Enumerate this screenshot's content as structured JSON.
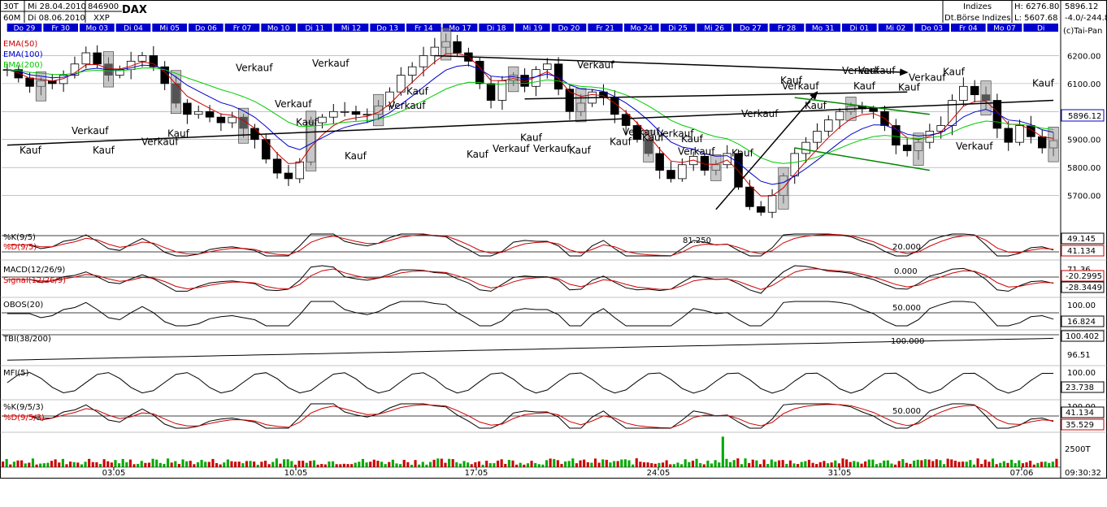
{
  "header": {
    "period_a": "30T",
    "period_b": "60M",
    "date_from": "Mi 28.04.2010",
    "date_to": "Di 08.06.2010",
    "wkn": "846900",
    "exchange": "XXP",
    "symbol": "DAX",
    "category": "Indizes",
    "category_sub": "Dt.Börse Indizes",
    "high": "H: 6276.80",
    "low": "L: 5607.68",
    "last": "5896.12",
    "change": "-4.0/-244.8",
    "copyright": "(c)Tai-Pan"
  },
  "day_labels": [
    "Do 29",
    "Fr 30",
    "Mo 03",
    "Di 04",
    "Mi 05",
    "Do 06",
    "Fr 07",
    "Mo 10",
    "Di 11",
    "Mi 12",
    "Do 13",
    "Fr 14",
    "Mo 17",
    "Di 18",
    "Mi 19",
    "Do 20",
    "Fr 21",
    "Mo 24",
    "Di 25",
    "Mi 26",
    "Do 27",
    "Fr 28",
    "Mo 31",
    "Di 01",
    "Mi 02",
    "Do 03",
    "Fr 04",
    "Mo 07",
    "Di"
  ],
  "date_axis": [
    "03.05",
    "10.05",
    "17.05",
    "24.05",
    "31.05",
    "07.06"
  ],
  "colors": {
    "ema50": "#cc0000",
    "ema100": "#0000cc",
    "ema200": "#00cc00",
    "signal": "#cc0000",
    "trend_green": "#008800",
    "axis_blue": "#0000cc",
    "label_red": "#cc0000",
    "volume_up": "#00aa00",
    "volume_down": "#cc0000"
  },
  "chart_data": {
    "type": "candlestick",
    "title": "DAX",
    "ylim": [
      5600,
      6276.8
    ],
    "y_ticks": [
      5700,
      5800,
      5900,
      6000,
      6100,
      6200
    ],
    "last_value": 5896.12,
    "close_series": [
      6150,
      6120,
      6090,
      6110,
      6100,
      6130,
      6170,
      6210,
      6170,
      6130,
      6150,
      6180,
      6200,
      6160,
      6100,
      6030,
      5990,
      6000,
      5980,
      5960,
      5980,
      5940,
      5900,
      5830,
      5780,
      5760,
      5820,
      5960,
      5980,
      6000,
      6000,
      5990,
      5990,
      6020,
      6070,
      6130,
      6160,
      6200,
      6230,
      6250,
      6210,
      6180,
      6100,
      6040,
      6110,
      6130,
      6090,
      6150,
      6170,
      6080,
      6000,
      6030,
      6070,
      6050,
      5990,
      5950,
      5900,
      5850,
      5790,
      5760,
      5810,
      5840,
      5790,
      5810,
      5850,
      5730,
      5660,
      5640,
      5700,
      5770,
      5850,
      5890,
      5930,
      5970,
      6000,
      6020,
      6010,
      6000,
      5950,
      5880,
      5860,
      5890,
      5930,
      5950,
      6040,
      6090,
      6060,
      6040,
      5940,
      5890,
      5950,
      5910,
      5870,
      5896
    ],
    "indicators": {
      "ema_legend": [
        "EMA(50)",
        "EMA(100)",
        "EMA(200)"
      ],
      "stoch": {
        "k_label": "%K(9/5)",
        "d_label": "%D(9/5)",
        "levels": [
          "81.250",
          "20.000"
        ],
        "k_value": "49.145",
        "d_value": "41.134"
      },
      "macd": {
        "label": "MACD(12/26/9)",
        "signal_label": "Signal(12/26/9)",
        "level": "0.000",
        "value": "-28.3449",
        "signal_value": "-20.2995",
        "top": "71.36"
      },
      "obos": {
        "label": "OBOS(20)",
        "level": "50.000",
        "top": "100.00",
        "value": "16.824"
      },
      "tbi": {
        "label": "TBI(38/200)",
        "level": "100.000",
        "value": "100.402",
        "low": "96.51"
      },
      "mfi": {
        "label": "MFI(5)",
        "top": "100.00",
        "value": "23.738"
      },
      "stoch2": {
        "k_label": "%K(9/5/3)",
        "d_label": "%D(9/5/3)",
        "level": "50.000",
        "top": "100.00",
        "k_value": "41.134",
        "d_value": "35.529"
      },
      "volume": {
        "tick": "2500T",
        "time": "09:30:32"
      }
    },
    "signals": [
      {
        "text": "Kauf",
        "x": 24,
        "y": 5850
      },
      {
        "text": "Kauf",
        "x": 114,
        "y": 5850
      },
      {
        "text": "Kauf",
        "x": 206,
        "y": 5910
      },
      {
        "text": "Kauf",
        "x": 364,
        "y": 5950
      },
      {
        "text": "Kauf",
        "x": 424,
        "y": 5830
      },
      {
        "text": "Kauf",
        "x": 500,
        "y": 6060
      },
      {
        "text": "Kauf",
        "x": 574,
        "y": 5835
      },
      {
        "text": "Kauf",
        "x": 640,
        "y": 5895
      },
      {
        "text": "Kauf",
        "x": 700,
        "y": 5850
      },
      {
        "text": "Kauf",
        "x": 750,
        "y": 5880
      },
      {
        "text": "Kauf",
        "x": 790,
        "y": 5895
      },
      {
        "text": "Kauf",
        "x": 838,
        "y": 5890
      },
      {
        "text": "Kauf",
        "x": 900,
        "y": 5840
      },
      {
        "text": "Kauf",
        "x": 960,
        "y": 6100
      },
      {
        "text": "Kauf",
        "x": 990,
        "y": 6010
      },
      {
        "text": "Kauf",
        "x": 1050,
        "y": 6080
      },
      {
        "text": "Kauf",
        "x": 1105,
        "y": 6075
      },
      {
        "text": "Kauf",
        "x": 1160,
        "y": 6130
      },
      {
        "text": "Kauf",
        "x": 1270,
        "y": 6090
      },
      {
        "text": "Verkauf",
        "x": 88,
        "y": 5920
      },
      {
        "text": "Verkauf",
        "x": 174,
        "y": 5880
      },
      {
        "text": "Verkauf",
        "x": 290,
        "y": 6145
      },
      {
        "text": "Verkauf",
        "x": 338,
        "y": 6015
      },
      {
        "text": "Verkauf",
        "x": 384,
        "y": 6160
      },
      {
        "text": "Verkauf",
        "x": 478,
        "y": 6010
      },
      {
        "text": "Verkauf",
        "x": 606,
        "y": 5855
      },
      {
        "text": "Verkauf",
        "x": 656,
        "y": 5855
      },
      {
        "text": "Verkauf",
        "x": 710,
        "y": 6155
      },
      {
        "text": "Verkauf",
        "x": 766,
        "y": 5915
      },
      {
        "text": "Verkauf",
        "x": 808,
        "y": 5910
      },
      {
        "text": "Verkauf",
        "x": 834,
        "y": 5845
      },
      {
        "text": "Verkauf",
        "x": 912,
        "y": 5980
      },
      {
        "text": "Verkauf",
        "x": 962,
        "y": 6080
      },
      {
        "text": "Verkauf",
        "x": 1036,
        "y": 6135
      },
      {
        "text": "Verkauf",
        "x": 1056,
        "y": 6135
      },
      {
        "text": "Verkauf",
        "x": 1118,
        "y": 6110
      },
      {
        "text": "Verkauf",
        "x": 1176,
        "y": 5865
      }
    ]
  }
}
